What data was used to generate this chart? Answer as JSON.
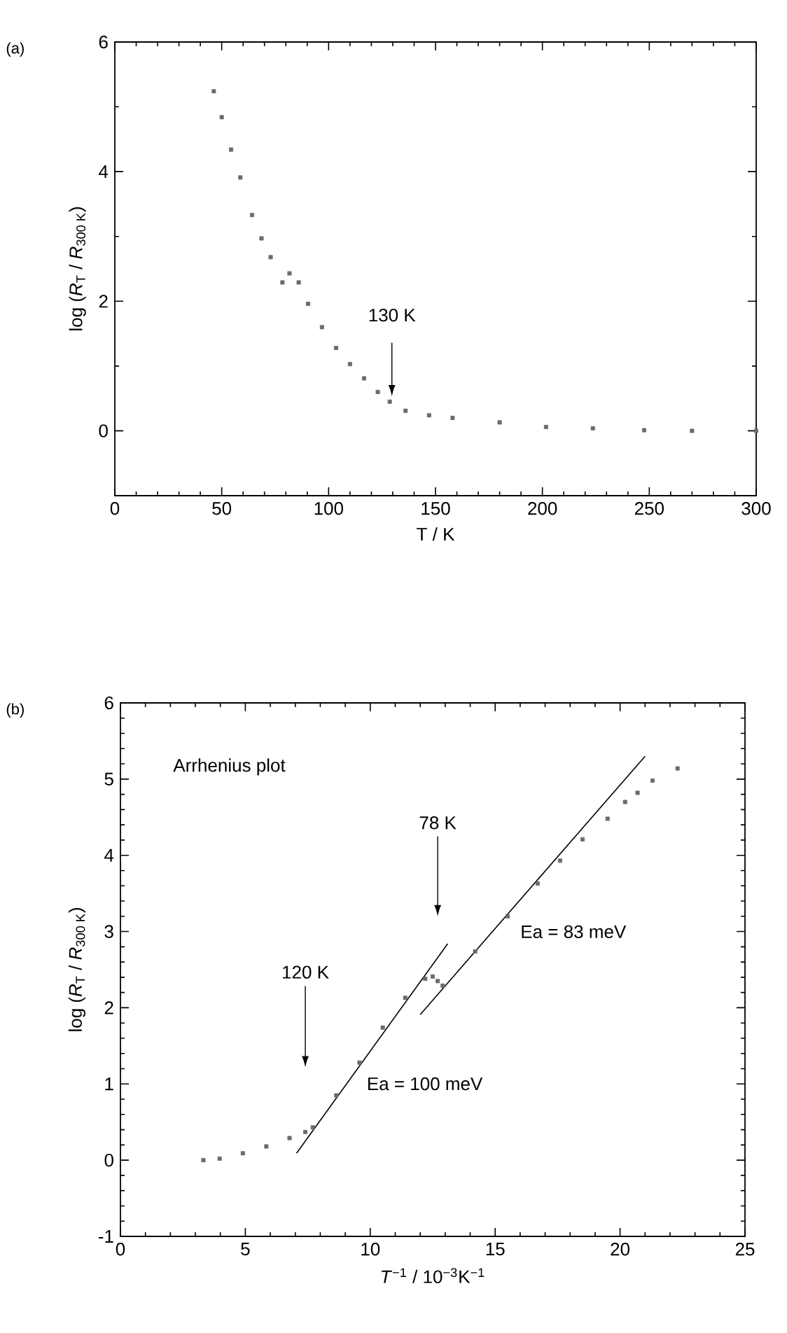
{
  "chart_data": [
    {
      "type": "scatter",
      "title": "(a)",
      "xlabel": "T / K",
      "ylabel": "log (*R*$_{T}$ / *R*$_{300 K}$)",
      "marker": "square",
      "xlim": [
        0,
        300
      ],
      "xticks": [
        0,
        50,
        100,
        150,
        200,
        250,
        300
      ],
      "ylim": [
        -1,
        6
      ],
      "yticks": [
        0,
        2,
        4,
        6
      ],
      "series": [
        {
          "color": "#6b6b6b",
          "x": [
            46.3,
            50,
            54.4,
            58.7,
            64.2,
            68.6,
            72.9,
            78.4,
            81.7,
            86,
            90.4,
            96.9,
            103.5,
            110,
            116.6,
            123,
            128.6,
            136,
            147,
            158,
            180,
            201.7,
            223.6,
            247.6,
            270,
            300
          ],
          "values": [
            5.24,
            4.84,
            4.34,
            3.91,
            3.33,
            2.97,
            2.68,
            2.29,
            2.43,
            2.29,
            1.96,
            1.6,
            1.28,
            1.03,
            0.81,
            0.6,
            0.45,
            0.31,
            0.24,
            0.2,
            0.13,
            0.06,
            0.04,
            0.01,
            0,
            0
          ]
        }
      ],
      "annotations": [
        "130 K"
      ]
    },
    {
      "type": "scatter",
      "title": "(b)",
      "xlabel": "*T*$^{−1}$ / 10$^{−3}$K$^{−1}$",
      "ylabel": "log (*R*$_{T}$ / *R*$_{300 K}$)",
      "marker": "square",
      "xlim": [
        0,
        25
      ],
      "xticks": [
        0,
        5,
        10,
        15,
        20,
        25
      ],
      "ylim": [
        -1,
        6
      ],
      "yticks": [
        -1,
        0,
        1,
        2,
        3,
        4,
        5,
        6
      ],
      "series": [
        {
          "color": "#6b6b6b",
          "x": [
            3.32,
            3.97,
            4.9,
            5.84,
            6.77,
            7.4,
            7.7,
            8.64,
            9.57,
            10.5,
            11.4,
            12.2,
            12.5,
            12.7,
            12.9,
            14.2,
            15.5,
            16.7,
            17.6,
            18.5,
            19.5,
            20.2,
            20.7,
            21.3,
            22.3
          ],
          "values": [
            0,
            0.02,
            0.09,
            0.18,
            0.29,
            0.37,
            0.43,
            0.85,
            1.28,
            1.74,
            2.13,
            2.38,
            2.41,
            2.35,
            2.29,
            2.74,
            3.2,
            3.63,
            3.93,
            4.21,
            4.48,
            4.7,
            4.82,
            4.98,
            5.14
          ]
        },
        {
          "type": "line",
          "marker": "none",
          "color": "#000000",
          "x": [
            7.05,
            13.1
          ],
          "values": [
            0.09,
            2.84
          ]
        },
        {
          "type": "line",
          "marker": "none",
          "color": "#000000",
          "x": [
            12.0,
            21.0
          ],
          "values": [
            1.91,
            5.3
          ]
        }
      ],
      "annotations": [
        "Arrhenius plot",
        "Ea = 100 meV",
        "Ea = 83 meV",
        "120 K",
        "78 K"
      ]
    }
  ]
}
